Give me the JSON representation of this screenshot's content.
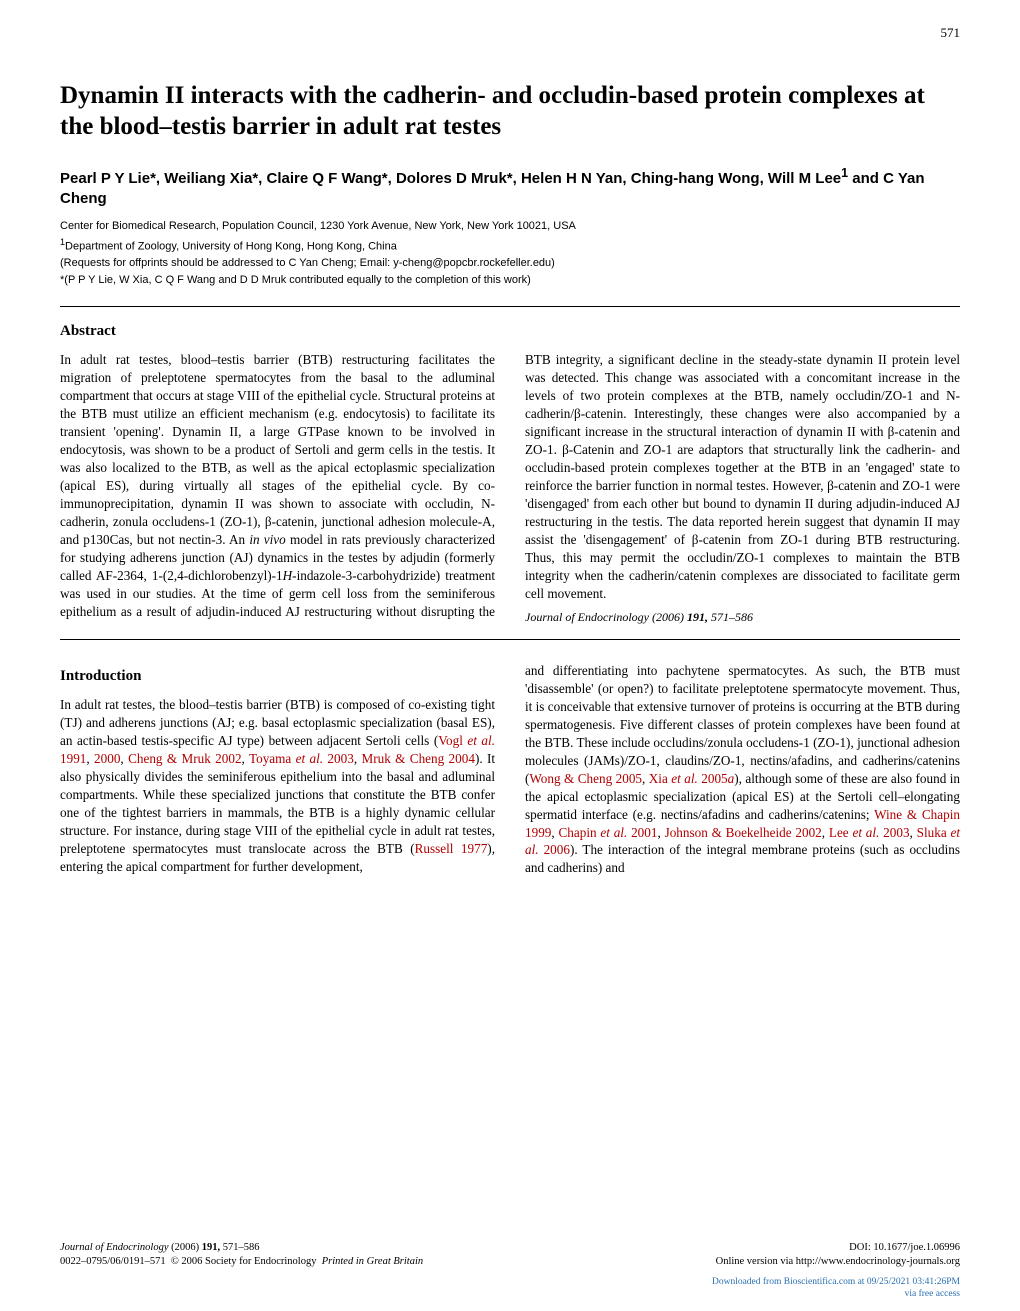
{
  "page_number": "571",
  "title": "Dynamin II interacts with the cadherin- and occludin-based protein complexes at the blood–testis barrier in adult rat testes",
  "authors_html": "Pearl P Y Lie*, Weiliang Xia*, Claire Q F Wang*, Dolores D Mruk*, Helen H N Yan, Ching-hang Wong, Will M Lee<sup>1</sup> and C Yan Cheng",
  "affil1": "Center for Biomedical Research, Population Council, 1230 York Avenue, New York, New York 10021, USA",
  "affil2_html": "<sup>1</sup>Department of Zoology, University of Hong Kong, Hong Kong, China",
  "requests": "(Requests for offprints should be addressed to C Yan Cheng; Email: y-cheng@popcbr.rockefeller.edu)",
  "equal_contrib": "*(P P Y Lie, W Xia, C Q F Wang and D D Mruk contributed equally to the completion of this work)",
  "abstract_heading": "Abstract",
  "abstract_html": "In adult rat testes, blood–testis barrier (BTB) restructuring facilitates the migration of preleptotene spermatocytes from the basal to the adluminal compartment that occurs at stage VIII of the epithelial cycle. Structural proteins at the BTB must utilize an efficient mechanism (e.g. endocytosis) to facilitate its transient 'opening'. Dynamin II, a large GTPase known to be involved in endocytosis, was shown to be a product of Sertoli and germ cells in the testis. It was also localized to the BTB, as well as the apical ectoplasmic specialization (apical ES), during virtually all stages of the epithelial cycle. By co-immunoprecipitation, dynamin II was shown to associate with occludin, N-cadherin, zonula occludens-1 (ZO-1), β-catenin, junctional adhesion molecule-A, and p130Cas, but not nectin-3. An <span class=\"ital\">in vivo</span> model in rats previously characterized for studying adherens junction (AJ) dynamics in the testes by adjudin (formerly called AF-2364, 1-(2,4-dichlorobenzyl)-1<span class=\"ital\">H</span>-indazole-3-carbohydrizide) treatment was used in our studies. At the time of germ cell loss from the seminiferous epithelium as a result of adjudin-induced AJ restructuring without disrupting the BTB integrity, a significant decline in the steady-state dynamin II protein level was detected. This change was associated with a concomitant increase in the levels of two protein complexes at the BTB, namely occludin/ZO-1 and N-cadherin/β-catenin. Interestingly, these changes were also accompanied by a significant increase in the structural interaction of dynamin II with β-catenin and ZO-1. β-Catenin and ZO-1 are adaptors that structurally link the cadherin- and occludin-based protein complexes together at the BTB in an 'engaged' state to reinforce the barrier function in normal testes. However, β-catenin and ZO-1 were 'disengaged' from each other but bound to dynamin II during adjudin-induced AJ restructuring in the testis. The data reported herein suggest that dynamin II may assist the 'disengagement' of β-catenin from ZO-1 during BTB restructuring. Thus, this may permit the occludin/ZO-1 complexes to maintain the BTB integrity when the cadherin/catenin complexes are dissociated to facilitate germ cell movement.",
  "abstract_citation_html": "<span class=\"ital\">Journal of Endocrinology</span> (2006) <b>191,</b> 571–586",
  "intro_heading": "Introduction",
  "intro_left_html": "In adult rat testes, the blood–testis barrier (BTB) is composed of co-existing tight (TJ) and adherens junctions (AJ; e.g. basal ectoplasmic specialization (basal ES), an actin-based testis-specific AJ type) between adjacent Sertoli cells (<span class=\"cite\">Vogl <span class=\"ital\">et al.</span> 1991</span>, <span class=\"cite\">2000</span>, <span class=\"cite\">Cheng &amp; Mruk 2002</span>, <span class=\"cite\">Toyama <span class=\"ital\">et al.</span> 2003</span>, <span class=\"cite\">Mruk &amp; Cheng 2004</span>). It also physically divides the seminiferous epithelium into the basal and adluminal compartments. While these specialized junctions that constitute the BTB confer one of the tightest barriers in mammals, the BTB is a highly dynamic cellular structure. For instance, during stage VIII of the epithelial cycle in adult rat testes, preleptotene spermatocytes must translocate across the BTB (<span class=\"cite\">Russell 1977</span>), entering the apical compartment for further development,",
  "intro_right_html": "and differentiating into pachytene spermatocytes. As such, the BTB must 'disassemble' (or open?) to facilitate preleptotene spermatocyte movement. Thus, it is conceivable that extensive turnover of proteins is occurring at the BTB during spermatogenesis. Five different classes of protein complexes have been found at the BTB. These include occludins/zonula occludens-1 (ZO-1), junctional adhesion molecules (JAMs)/ZO-1, claudins/ZO-1, nectins/afadins, and cadherins/catenins (<span class=\"cite\">Wong &amp; Cheng 2005</span>, <span class=\"cite\">Xia <span class=\"ital\">et al.</span> 2005<span class=\"ital\">a</span></span>), although some of these are also found in the apical ectoplasmic specialization (apical ES) at the Sertoli cell–elongating spermatid interface (e.g. nectins/afadins and cadherins/catenins; <span class=\"cite\">Wine &amp; Chapin 1999</span>, <span class=\"cite\">Chapin <span class=\"ital\">et al.</span> 2001</span>, <span class=\"cite\">Johnson &amp; Boekelheide 2002</span>, <span class=\"cite\">Lee <span class=\"ital\">et al.</span> 2003</span>, <span class=\"cite\">Sluka <span class=\"ital\">et al.</span> 2006</span>). The interaction of the integral membrane proteins (such as occludins and cadherins) and",
  "footer_left_line1_html": "<span class=\"jline\">Journal of Endocrinology</span> (2006) <b>191,</b> 571–586",
  "footer_left_line2_html": "0022–0795/06/0191–571&nbsp;&nbsp;© 2006 Society for Endocrinology&nbsp;&nbsp;<span class=\"ital\">Printed in Great Britain</span>",
  "footer_right_line1": "DOI: 10.1677/joe.1.06996",
  "footer_right_line2": "Online version via http://www.endocrinology-journals.org",
  "watermark_line1": "Downloaded from Bioscientifica.com at 09/25/2021 03:41:26PM",
  "watermark_line2": "via free access",
  "colors": {
    "text": "#000000",
    "citation": "#b00000",
    "watermark": "#2a6fb0",
    "background": "#ffffff"
  },
  "fonts": {
    "body": "Times New Roman",
    "meta": "Arial",
    "title_pt": 25,
    "body_pt": 13.2,
    "authors_pt": 15,
    "affil_pt": 11,
    "footer_pt": 10.5
  }
}
